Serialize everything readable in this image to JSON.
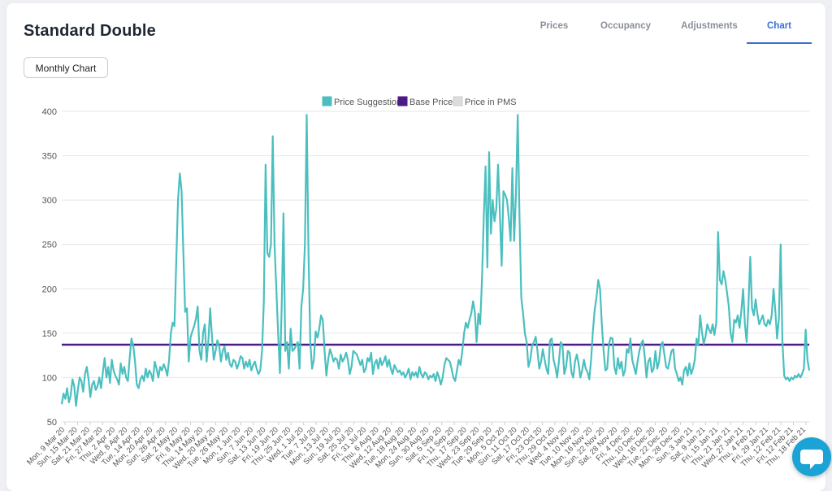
{
  "header": {
    "title": "Standard Double"
  },
  "tabs": [
    {
      "label": "Prices",
      "active": false
    },
    {
      "label": "Occupancy",
      "active": false
    },
    {
      "label": "Adjustments",
      "active": false
    },
    {
      "label": "Chart",
      "active": true
    }
  ],
  "toolbar": {
    "monthly_chart_label": "Monthly Chart"
  },
  "chat": {
    "icon": "chat-bubble-icon",
    "color": "#1aa3d4"
  },
  "chart_data": {
    "type": "line",
    "title": "",
    "xlabel": "",
    "ylabel": "",
    "ylim": [
      50,
      400
    ],
    "yticks": [
      50,
      100,
      150,
      200,
      250,
      300,
      350,
      400
    ],
    "grid": true,
    "legend_position": "top-center",
    "x_tick_labels": [
      "Mon, 9 Mar 20",
      "Sun, 15 Mar 20",
      "Sat, 21 Mar 20",
      "Fri, 27 Mar 20",
      "Thu, 2 Apr 20",
      "Wed, 8 Apr 20",
      "Tue, 14 Apr 20",
      "Mon, 20 Apr 20",
      "Sun, 26 Apr 20",
      "Sat, 2 May 20",
      "Fri, 8 May 20",
      "Thu, 14 May 20",
      "Wed, 20 May 20",
      "Tue, 26 May 20",
      "Mon, 1 Jun 20",
      "Sun, 7 Jun 20",
      "Sat, 13 Jun 20",
      "Fri, 19 Jun 20",
      "Thu, 25 Jun 20",
      "Wed, 1 Jul 20",
      "Tue, 7 Jul 20",
      "Mon, 13 Jul 20",
      "Sun, 19 Jul 20",
      "Sat, 25 Jul 20",
      "Fri, 31 Jul 20",
      "Thu, 6 Aug 20",
      "Wed, 12 Aug 20",
      "Tue, 18 Aug 20",
      "Mon, 24 Aug 20",
      "Sun, 30 Aug 20",
      "Sat, 5 Sep 20",
      "Fri, 11 Sep 20",
      "Thu, 17 Sep 20",
      "Wed, 23 Sep 20",
      "Tue, 29 Sep 20",
      "Mon, 5 Oct 20",
      "Sun, 11 Oct 20",
      "Sat, 17 Oct 20",
      "Fri, 23 Oct 20",
      "Thu, 29 Oct 20",
      "Wed, 4 Nov 20",
      "Tue, 10 Nov 20",
      "Mon, 16 Nov 20",
      "Sun, 22 Nov 20",
      "Sat, 28 Nov 20",
      "Fri, 4 Dec 20",
      "Thu, 10 Dec 20",
      "Wed, 16 Dec 20",
      "Tue, 22 Dec 20",
      "Mon, 28 Dec 20",
      "Sun, 3 Jan 21",
      "Sat, 9 Jan 21",
      "Fri, 15 Jan 21",
      "Thu, 21 Jan 21",
      "Wed, 27 Jan 21",
      "Thu, 4 Feb 21",
      "Fri, 29 Jan 21",
      "Thu, 12 Feb 21",
      "Fri, 12 Feb 21",
      "Thu, 18 Feb 21"
    ],
    "series": [
      {
        "name": "Price Suggestion",
        "color": "#4bbfbf",
        "values": [
          70,
          82,
          76,
          88,
          72,
          80,
          98,
          90,
          68,
          86,
          100,
          96,
          84,
          104,
          112,
          98,
          78,
          92,
          96,
          86,
          90,
          100,
          88,
          106,
          122,
          100,
          112,
          94,
          120,
          108,
          102,
          98,
          92,
          116,
          104,
          112,
          100,
          96,
          122,
          144,
          136,
          118,
          92,
          88,
          98,
          102,
          96,
          110,
          100,
          108,
          104,
          96,
          118,
          110,
          100,
          112,
          108,
          115,
          110,
          102,
          120,
          150,
          162,
          158,
          230,
          300,
          330,
          310,
          240,
          174,
          178,
          118,
          145,
          152,
          158,
          166,
          180,
          130,
          120,
          150,
          160,
          118,
          142,
          178,
          146,
          120,
          130,
          142,
          136,
          118,
          130,
          135,
          120,
          128,
          115,
          112,
          120,
          118,
          110,
          116,
          124,
          122,
          110,
          118,
          112,
          120,
          108,
          114,
          118,
          110,
          104,
          108,
          130,
          185,
          340,
          240,
          236,
          250,
          372,
          250,
          200,
          150,
          105,
          180,
          285,
          130,
          140,
          110,
          155,
          130,
          132,
          136,
          140,
          110,
          180,
          200,
          250,
          396,
          240,
          140,
          110,
          120,
          152,
          145,
          155,
          170,
          165,
          130,
          102,
          120,
          132,
          126,
          118,
          122,
          120,
          110,
          126,
          118,
          122,
          128,
          120,
          104,
          112,
          130,
          128,
          126,
          120,
          114,
          120,
          106,
          110,
          122,
          118,
          128,
          104,
          116,
          120,
          110,
          122,
          114,
          118,
          124,
          112,
          120,
          110,
          104,
          114,
          110,
          106,
          108,
          103,
          106,
          100,
          104,
          110,
          98,
          106,
          102,
          106,
          100,
          112,
          104,
          100,
          106,
          104,
          98,
          102,
          100,
          104,
          96,
          106,
          100,
          92,
          100,
          114,
          122,
          120,
          118,
          110,
          100,
          96,
          108,
          120,
          114,
          130,
          150,
          162,
          156,
          165,
          172,
          186,
          174,
          140,
          172,
          160,
          210,
          280,
          338,
          224,
          354,
          262,
          300,
          276,
          290,
          340,
          286,
          226,
          310,
          306,
          300,
          280,
          254,
          336,
          254,
          306,
          396,
          280,
          190,
          172,
          150,
          140,
          112,
          120,
          136,
          140,
          146,
          130,
          110,
          118,
          132,
          120,
          110,
          104,
          142,
          144,
          120,
          112,
          100,
          118,
          140,
          136,
          104,
          112,
          130,
          128,
          106,
          100,
          118,
          126,
          116,
          100,
          108,
          120,
          110,
          106,
          98,
          120,
          152,
          176,
          190,
          210,
          200,
          160,
          130,
          108,
          110,
          138,
          145,
          144,
          112,
          104,
          122,
          110,
          118,
          102,
          108,
          132,
          128,
          144,
          120,
          112,
          104,
          118,
          130,
          138,
          142,
          124,
          100,
          118,
          122,
          106,
          110,
          130,
          110,
          118,
          136,
          140,
          126,
          112,
          110,
          120,
          130,
          132,
          110,
          104,
          96,
          100,
          92,
          108,
          112,
          102,
          116,
          104,
          110,
          120,
          144,
          136,
          170,
          152,
          138,
          146,
          160,
          154,
          150,
          160,
          148,
          162,
          264,
          210,
          205,
          220,
          210,
          196,
          180,
          150,
          140,
          165,
          162,
          170,
          156,
          175,
          200,
          160,
          140,
          182,
          236,
          178,
          170,
          188,
          172,
          160,
          165,
          170,
          160,
          158,
          165,
          160,
          170,
          200,
          176,
          144,
          166,
          250,
          140,
          102,
          98,
          100,
          96,
          100,
          98,
          102,
          100,
          104,
          100,
          104,
          110,
          154,
          120,
          108
        ]
      },
      {
        "name": "Base Price",
        "color": "#4b1a86",
        "values": [
          137
        ]
      },
      {
        "name": "Price in PMS",
        "color": "#dddddd",
        "values": []
      }
    ]
  }
}
